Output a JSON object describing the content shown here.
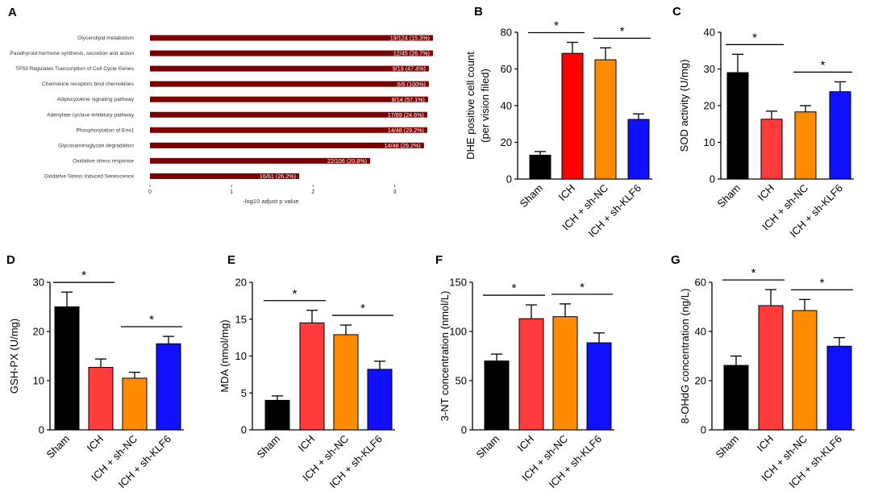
{
  "chart_data": [
    {
      "panel": "A",
      "type": "bar",
      "orientation": "horizontal",
      "xlabel": "-log10 adjust p value",
      "xlim": [
        0,
        3.5
      ],
      "xticks": [
        0,
        1,
        2,
        3
      ],
      "bar_color": "#7b0000",
      "categories": [
        "Glycerolipid metabolism",
        "Parathyroid hormone synthesis, secretion and action",
        "TP53 Regulates Transcription of Cell Cycle Genes",
        "Chemokine receptors bind chemokines",
        "Adipocytokine signaling pathway",
        "Adenylate cyclase inhibitory pathway",
        "Phosphorylation of Emi1",
        "Glycosaminoglycan degradation",
        "Oxidative stress response",
        "Oxidative Stress Induced Senescence"
      ],
      "values": [
        3.47,
        3.47,
        3.42,
        3.42,
        3.41,
        3.4,
        3.4,
        3.36,
        2.7,
        1.83
      ],
      "labels": [
        "19/124 (15.3%)",
        "12/45 (26.7%)",
        "9/19 (47.4%)",
        "6/6 (100%)",
        "8/14 (57.1%)",
        "17/69 (24.6%)",
        "14/48 (29.2%)",
        "14/48 (29.2%)",
        "22/106 (20.8%)",
        "16/61 (26.2%)"
      ]
    },
    {
      "panel": "B",
      "type": "bar",
      "categories": [
        "Sham",
        "ICH",
        "ICH + sh-NC",
        "ICH + sh-KLF6"
      ],
      "values": [
        13,
        68.5,
        65,
        32.5
      ],
      "errors": [
        2,
        6,
        6.5,
        3
      ],
      "ylabel": [
        "DHE positive cell count",
        "(per vision filed)"
      ],
      "ylim": [
        0,
        80
      ],
      "yticks": [
        0,
        20,
        40,
        60,
        80
      ],
      "significance": [
        {
          "from": 0,
          "to": 1,
          "label": "*"
        },
        {
          "from": 2,
          "to": 3,
          "label": "*"
        }
      ]
    },
    {
      "panel": "C",
      "type": "bar",
      "categories": [
        "Sham",
        "ICH",
        "ICH + sh-NC",
        "ICH + sh-KLF6"
      ],
      "values": [
        29,
        16.3,
        18.3,
        23.8
      ],
      "errors": [
        5,
        2.2,
        1.7,
        2.7
      ],
      "ylabel": [
        "SOD activity (U/mg)"
      ],
      "ylim": [
        0,
        40
      ],
      "yticks": [
        0,
        10,
        20,
        30,
        40
      ],
      "significance": [
        {
          "from": 0,
          "to": 1,
          "label": "*"
        },
        {
          "from": 2,
          "to": 3,
          "label": "*"
        }
      ]
    },
    {
      "panel": "D",
      "type": "bar",
      "categories": [
        "Sham",
        "ICH",
        "ICH + sh-NC",
        "ICH + sh-KLF6"
      ],
      "values": [
        25,
        12.7,
        10.5,
        17.5
      ],
      "errors": [
        3,
        1.7,
        1.2,
        1.5
      ],
      "ylabel": [
        "GSH-PX (U/mg)"
      ],
      "ylim": [
        0,
        30
      ],
      "yticks": [
        0,
        10,
        20,
        30
      ],
      "significance": [
        {
          "from": 0,
          "to": 1,
          "label": "*"
        },
        {
          "from": 2,
          "to": 3,
          "label": "*"
        }
      ]
    },
    {
      "panel": "E",
      "type": "bar",
      "categories": [
        "Sham",
        "ICH",
        "ICH + sh-NC",
        "ICH + sh-KLF6"
      ],
      "values": [
        4,
        14.5,
        12.9,
        8.2
      ],
      "errors": [
        0.6,
        1.7,
        1.3,
        1.1
      ],
      "ylabel": [
        "MDA (nmol/mg)"
      ],
      "ylim": [
        0,
        20
      ],
      "yticks": [
        0,
        5,
        10,
        15,
        20
      ],
      "significance": [
        {
          "from": 0,
          "to": 1,
          "label": "*"
        },
        {
          "from": 2,
          "to": 3,
          "label": "*"
        }
      ]
    },
    {
      "panel": "F",
      "type": "bar",
      "categories": [
        "Sham",
        "ICH",
        "ICH + sh-NC",
        "ICH + sh-KLF6"
      ],
      "values": [
        70,
        113,
        115,
        88.5
      ],
      "errors": [
        7,
        14,
        13,
        10
      ],
      "ylabel": [
        "3-NT concentration (nmol/L)"
      ],
      "ylim": [
        0,
        150
      ],
      "yticks": [
        0,
        50,
        100,
        150
      ],
      "significance": [
        {
          "from": 0,
          "to": 1,
          "label": "*"
        },
        {
          "from": 2,
          "to": 3,
          "label": "*"
        }
      ]
    },
    {
      "panel": "G",
      "type": "bar",
      "categories": [
        "Sham",
        "ICH",
        "ICH + sh-NC",
        "ICH + sh-KLF6"
      ],
      "values": [
        26.2,
        50.5,
        48.5,
        34
      ],
      "errors": [
        3.8,
        6.5,
        4.5,
        3.5
      ],
      "ylabel": [
        "8-OHdG concentration (ng/L)"
      ],
      "ylim": [
        0,
        60
      ],
      "yticks": [
        0,
        20,
        40,
        60
      ],
      "significance": [
        {
          "from": 0,
          "to": 1,
          "label": "*"
        },
        {
          "from": 2,
          "to": 3,
          "label": "*"
        }
      ]
    }
  ],
  "bar_colors": [
    "#000000",
    "#ff3b3b",
    "#ff8c00",
    "#1010ff"
  ],
  "bar_colors_B": [
    "#000000",
    "#ff0000",
    "#ff8c00",
    "#1010ff"
  ]
}
